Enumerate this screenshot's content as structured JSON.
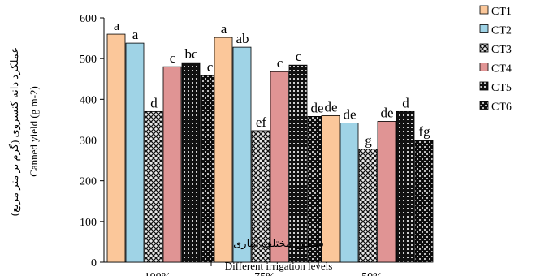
{
  "chart_data": {
    "type": "bar",
    "categories": [
      "100%",
      "75%",
      "50%"
    ],
    "ylim": [
      0,
      600
    ],
    "yticks": [
      0,
      100,
      200,
      300,
      400,
      500,
      600
    ],
    "ylabel": "Canned yield (g m-2)",
    "ylabel_fa": "عملکرد دانه کنسروی (گرم بر متر مربع)",
    "xlabel": "Different irrigation levels",
    "xlabel_fa": "سطوح مختلف آبیاری",
    "legend_position": "right",
    "grid": false,
    "series": [
      {
        "name": "CT1",
        "color": "#fbc79a",
        "pattern": "solid",
        "values": [
          560,
          552,
          360
        ],
        "labels": [
          "a",
          "a",
          "de"
        ]
      },
      {
        "name": "CT2",
        "color": "#9fd3e6",
        "pattern": "solid",
        "values": [
          538,
          528,
          342
        ],
        "labels": [
          "a",
          "ab",
          "de"
        ]
      },
      {
        "name": "CT3",
        "color": "#9c9c9c",
        "pattern": "crosshatch",
        "values": [
          370,
          323,
          278
        ],
        "labels": [
          "d",
          "ef",
          "g"
        ]
      },
      {
        "name": "CT4",
        "color": "#e09494",
        "pattern": "solid",
        "values": [
          480,
          468,
          346
        ],
        "labels": [
          "c",
          "c",
          "de"
        ]
      },
      {
        "name": "CT5",
        "color": "#1a1a1a",
        "pattern": "dotted-grid",
        "values": [
          490,
          484,
          370
        ],
        "labels": [
          "bc",
          "c",
          "d"
        ]
      },
      {
        "name": "CT6",
        "color": "#1a1a1a",
        "pattern": "checker",
        "values": [
          458,
          358,
          300
        ],
        "labels": [
          "c",
          "de",
          "fg"
        ]
      }
    ]
  }
}
